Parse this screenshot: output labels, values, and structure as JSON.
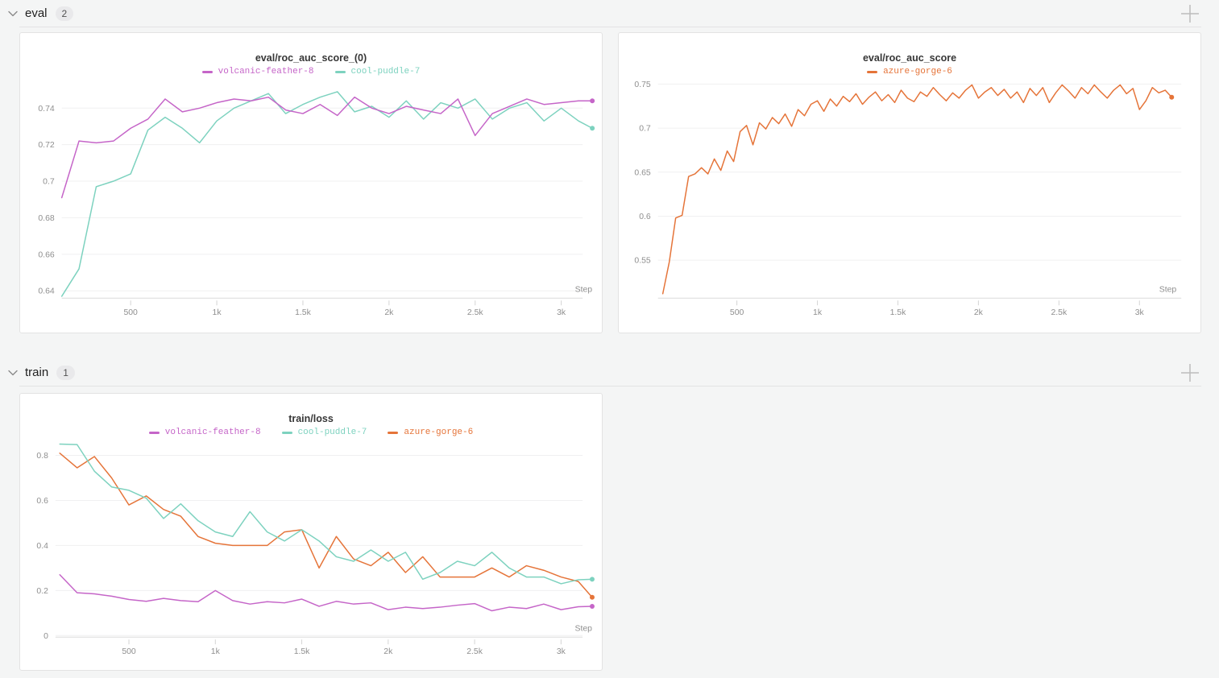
{
  "page": {
    "background_color": "#f4f5f5"
  },
  "colors": {
    "volcanic_feather_8": "#c565c8",
    "cool_puddle_7": "#7dd2bf",
    "azure_gorge_6": "#e57439",
    "grid": "#f0f0f1",
    "axis": "#dcdcdc",
    "tick": "#d4d4d4",
    "tick_text": "#8f8f8f"
  },
  "sections": [
    {
      "title": "eval",
      "count": "2",
      "collapse_icon": "chevron-down-icon",
      "add_icon": "plus-icon"
    },
    {
      "title": "train",
      "count": "1",
      "collapse_icon": "chevron-down-icon",
      "add_icon": "plus-icon"
    }
  ],
  "chart_data": [
    {
      "type": "line",
      "title": "eval/roc_auc_score_(0)",
      "xlabel": "Step",
      "ylabel": "",
      "xlim": [
        100,
        3180
      ],
      "ylim": [
        0.636,
        0.75
      ],
      "yticks": [
        0.64,
        0.66,
        0.68,
        0.7,
        0.72,
        0.74
      ],
      "xticks": [
        500,
        1000,
        1500,
        2000,
        2500,
        3000
      ],
      "xtick_labels": [
        "500",
        "1k",
        "1.5k",
        "2k",
        "2.5k",
        "3k"
      ],
      "grid": true,
      "legend_position": "top",
      "series": [
        {
          "name": "volcanic-feather-8",
          "color": "#c565c8",
          "x": [
            100,
            200,
            300,
            400,
            500,
            600,
            700,
            800,
            900,
            1000,
            1100,
            1200,
            1300,
            1400,
            1500,
            1600,
            1700,
            1800,
            1900,
            2000,
            2100,
            2200,
            2300,
            2400,
            2500,
            2600,
            2700,
            2800,
            2900,
            3000,
            3100,
            3180
          ],
          "y": [
            0.691,
            0.722,
            0.721,
            0.722,
            0.729,
            0.734,
            0.745,
            0.738,
            0.74,
            0.743,
            0.745,
            0.744,
            0.746,
            0.739,
            0.737,
            0.742,
            0.736,
            0.746,
            0.74,
            0.737,
            0.741,
            0.739,
            0.737,
            0.745,
            0.725,
            0.737,
            0.741,
            0.745,
            0.742,
            0.743,
            0.744,
            0.744
          ]
        },
        {
          "name": "cool-puddle-7",
          "color": "#7dd2bf",
          "x": [
            100,
            200,
            300,
            400,
            500,
            600,
            700,
            800,
            900,
            1000,
            1100,
            1200,
            1300,
            1400,
            1500,
            1600,
            1700,
            1800,
            1900,
            2000,
            2100,
            2200,
            2300,
            2400,
            2500,
            2600,
            2700,
            2800,
            2900,
            3000,
            3100,
            3180
          ],
          "y": [
            0.637,
            0.652,
            0.697,
            0.7,
            0.704,
            0.728,
            0.735,
            0.729,
            0.721,
            0.733,
            0.74,
            0.744,
            0.748,
            0.737,
            0.742,
            0.746,
            0.749,
            0.738,
            0.741,
            0.735,
            0.744,
            0.734,
            0.743,
            0.74,
            0.745,
            0.734,
            0.74,
            0.743,
            0.733,
            0.74,
            0.733,
            0.729
          ]
        }
      ]
    },
    {
      "type": "line",
      "title": "eval/roc_auc_score",
      "xlabel": "Step",
      "ylabel": "",
      "xlim": [
        10,
        3230
      ],
      "ylim": [
        0.507,
        0.757
      ],
      "yticks": [
        0.55,
        0.6,
        0.65,
        0.7,
        0.75
      ],
      "xticks": [
        500,
        1000,
        1500,
        2000,
        2500,
        3000
      ],
      "xtick_labels": [
        "500",
        "1k",
        "1.5k",
        "2k",
        "2.5k",
        "3k"
      ],
      "grid": true,
      "legend_position": "top",
      "series": [
        {
          "name": "azure-gorge-6",
          "color": "#e57439",
          "x": [
            40,
            80,
            120,
            160,
            200,
            240,
            280,
            320,
            360,
            400,
            440,
            480,
            520,
            560,
            600,
            640,
            680,
            720,
            760,
            800,
            840,
            880,
            920,
            960,
            1000,
            1040,
            1080,
            1120,
            1160,
            1200,
            1240,
            1280,
            1320,
            1360,
            1400,
            1440,
            1480,
            1520,
            1560,
            1600,
            1640,
            1680,
            1720,
            1760,
            1800,
            1840,
            1880,
            1920,
            1960,
            2000,
            2040,
            2080,
            2120,
            2160,
            2200,
            2240,
            2280,
            2320,
            2360,
            2400,
            2440,
            2480,
            2520,
            2560,
            2600,
            2640,
            2680,
            2720,
            2760,
            2800,
            2840,
            2880,
            2920,
            2960,
            3000,
            3040,
            3080,
            3120,
            3160,
            3200
          ],
          "y": [
            0.512,
            0.548,
            0.598,
            0.601,
            0.645,
            0.648,
            0.655,
            0.648,
            0.665,
            0.652,
            0.674,
            0.662,
            0.696,
            0.703,
            0.681,
            0.706,
            0.699,
            0.712,
            0.705,
            0.716,
            0.702,
            0.721,
            0.714,
            0.727,
            0.731,
            0.719,
            0.733,
            0.725,
            0.736,
            0.73,
            0.739,
            0.727,
            0.735,
            0.741,
            0.731,
            0.738,
            0.729,
            0.743,
            0.734,
            0.73,
            0.741,
            0.736,
            0.746,
            0.738,
            0.731,
            0.74,
            0.734,
            0.743,
            0.749,
            0.734,
            0.741,
            0.746,
            0.737,
            0.744,
            0.734,
            0.741,
            0.729,
            0.745,
            0.737,
            0.746,
            0.729,
            0.74,
            0.749,
            0.742,
            0.734,
            0.746,
            0.739,
            0.749,
            0.741,
            0.734,
            0.743,
            0.749,
            0.739,
            0.745,
            0.721,
            0.731,
            0.746,
            0.74,
            0.743,
            0.735
          ]
        }
      ]
    },
    {
      "type": "line",
      "title": "train/loss",
      "xlabel": "Step",
      "ylabel": "",
      "xlim": [
        75,
        3180
      ],
      "ylim": [
        -0.007,
        0.896
      ],
      "yticks": [
        0,
        0.2,
        0.4,
        0.6,
        0.8
      ],
      "xticks": [
        500,
        1000,
        1500,
        2000,
        2500,
        3000
      ],
      "xtick_labels": [
        "500",
        "1k",
        "1.5k",
        "2k",
        "2.5k",
        "3k"
      ],
      "grid": true,
      "legend_position": "top",
      "series": [
        {
          "name": "volcanic-feather-8",
          "color": "#c565c8",
          "x": [
            100,
            200,
            300,
            400,
            500,
            600,
            700,
            800,
            900,
            1000,
            1100,
            1200,
            1300,
            1400,
            1500,
            1600,
            1700,
            1800,
            1900,
            2000,
            2100,
            2200,
            2300,
            2400,
            2500,
            2600,
            2700,
            2800,
            2900,
            3000,
            3100,
            3180
          ],
          "y": [
            0.27,
            0.19,
            0.185,
            0.175,
            0.16,
            0.152,
            0.165,
            0.155,
            0.15,
            0.2,
            0.155,
            0.14,
            0.15,
            0.145,
            0.162,
            0.13,
            0.152,
            0.14,
            0.145,
            0.115,
            0.126,
            0.12,
            0.126,
            0.135,
            0.142,
            0.11,
            0.126,
            0.12,
            0.14,
            0.115,
            0.128,
            0.13
          ]
        },
        {
          "name": "cool-puddle-7",
          "color": "#7dd2bf",
          "x": [
            100,
            200,
            300,
            400,
            500,
            600,
            700,
            800,
            900,
            1000,
            1100,
            1200,
            1300,
            1400,
            1500,
            1600,
            1700,
            1800,
            1900,
            2000,
            2100,
            2200,
            2300,
            2400,
            2500,
            2600,
            2700,
            2800,
            2900,
            3000,
            3100,
            3180
          ],
          "y": [
            0.85,
            0.848,
            0.73,
            0.66,
            0.645,
            0.61,
            0.52,
            0.585,
            0.51,
            0.46,
            0.44,
            0.55,
            0.46,
            0.42,
            0.47,
            0.42,
            0.35,
            0.33,
            0.38,
            0.33,
            0.37,
            0.25,
            0.28,
            0.33,
            0.31,
            0.37,
            0.3,
            0.26,
            0.26,
            0.23,
            0.248,
            0.25
          ]
        },
        {
          "name": "azure-gorge-6",
          "color": "#e57439",
          "x": [
            100,
            200,
            300,
            400,
            500,
            600,
            700,
            800,
            900,
            1000,
            1100,
            1200,
            1300,
            1400,
            1500,
            1600,
            1700,
            1800,
            1900,
            2000,
            2100,
            2200,
            2300,
            2400,
            2500,
            2600,
            2700,
            2800,
            2900,
            3000,
            3100,
            3180
          ],
          "y": [
            0.81,
            0.745,
            0.795,
            0.7,
            0.58,
            0.62,
            0.56,
            0.53,
            0.44,
            0.41,
            0.4,
            0.4,
            0.4,
            0.46,
            0.47,
            0.3,
            0.44,
            0.34,
            0.31,
            0.37,
            0.28,
            0.35,
            0.26,
            0.26,
            0.26,
            0.3,
            0.26,
            0.31,
            0.29,
            0.26,
            0.24,
            0.17
          ]
        }
      ]
    }
  ]
}
